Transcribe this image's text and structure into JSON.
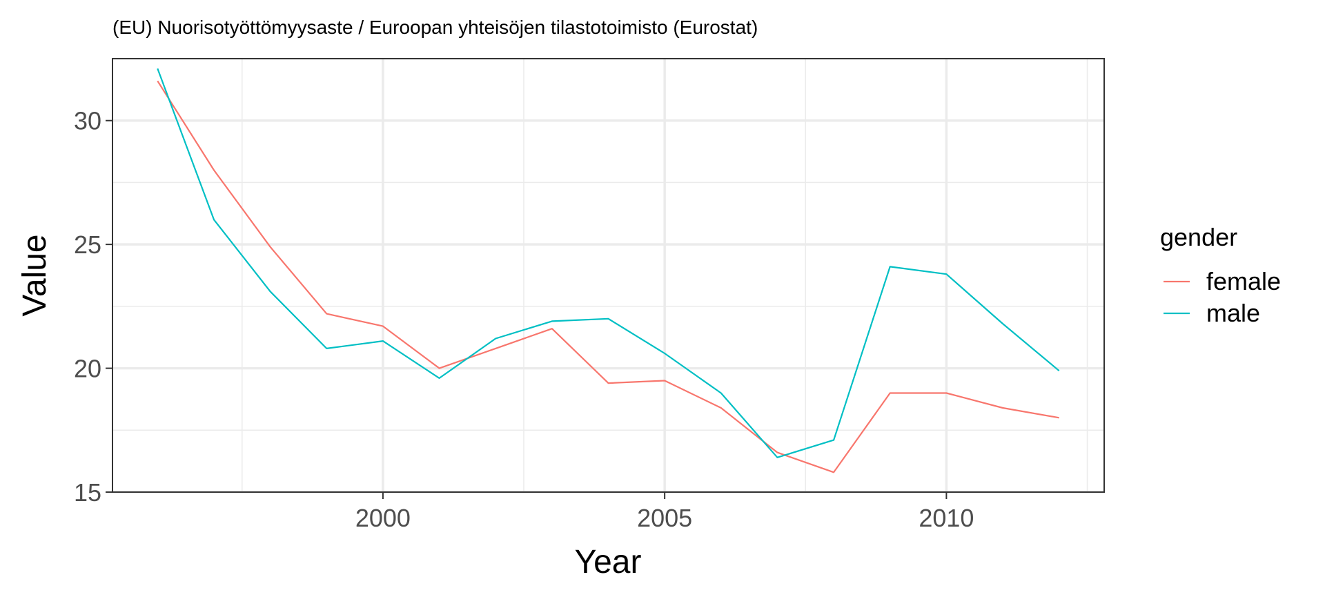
{
  "chart_data": {
    "type": "line",
    "title": "(EU) Nuorisotyöttömyysaste / Euroopan yhteisöjen tilastotoimisto (Eurostat)",
    "xlabel": "Year",
    "ylabel": "Value",
    "xlim": [
      1995.2,
      2012.8
    ],
    "ylim": [
      15,
      32.5
    ],
    "x_ticks": [
      2000,
      2005,
      2010
    ],
    "x_minor_ticks": [
      1997.5,
      2002.5,
      2007.5,
      2012.5
    ],
    "y_ticks": [
      15,
      20,
      25,
      30
    ],
    "y_minor_ticks": [
      17.5,
      22.5,
      27.5,
      32.5
    ],
    "grid": true,
    "legend_title": "gender",
    "legend_position": "right",
    "x": [
      1996,
      1997,
      1998,
      1999,
      2000,
      2001,
      2002,
      2003,
      2004,
      2005,
      2006,
      2007,
      2008,
      2009,
      2010,
      2011,
      2012
    ],
    "series": [
      {
        "name": "female",
        "color": "#F8766D",
        "values": [
          31.6,
          28.0,
          24.9,
          22.2,
          21.7,
          20.0,
          20.8,
          21.6,
          19.4,
          19.5,
          18.4,
          16.6,
          15.8,
          19.0,
          19.0,
          18.4,
          18.0
        ]
      },
      {
        "name": "male",
        "color": "#00BFC4",
        "values": [
          32.1,
          26.0,
          23.1,
          20.8,
          21.1,
          19.6,
          21.2,
          21.9,
          22.0,
          20.6,
          19.0,
          16.4,
          17.1,
          24.1,
          23.8,
          21.8,
          19.9
        ]
      }
    ]
  }
}
